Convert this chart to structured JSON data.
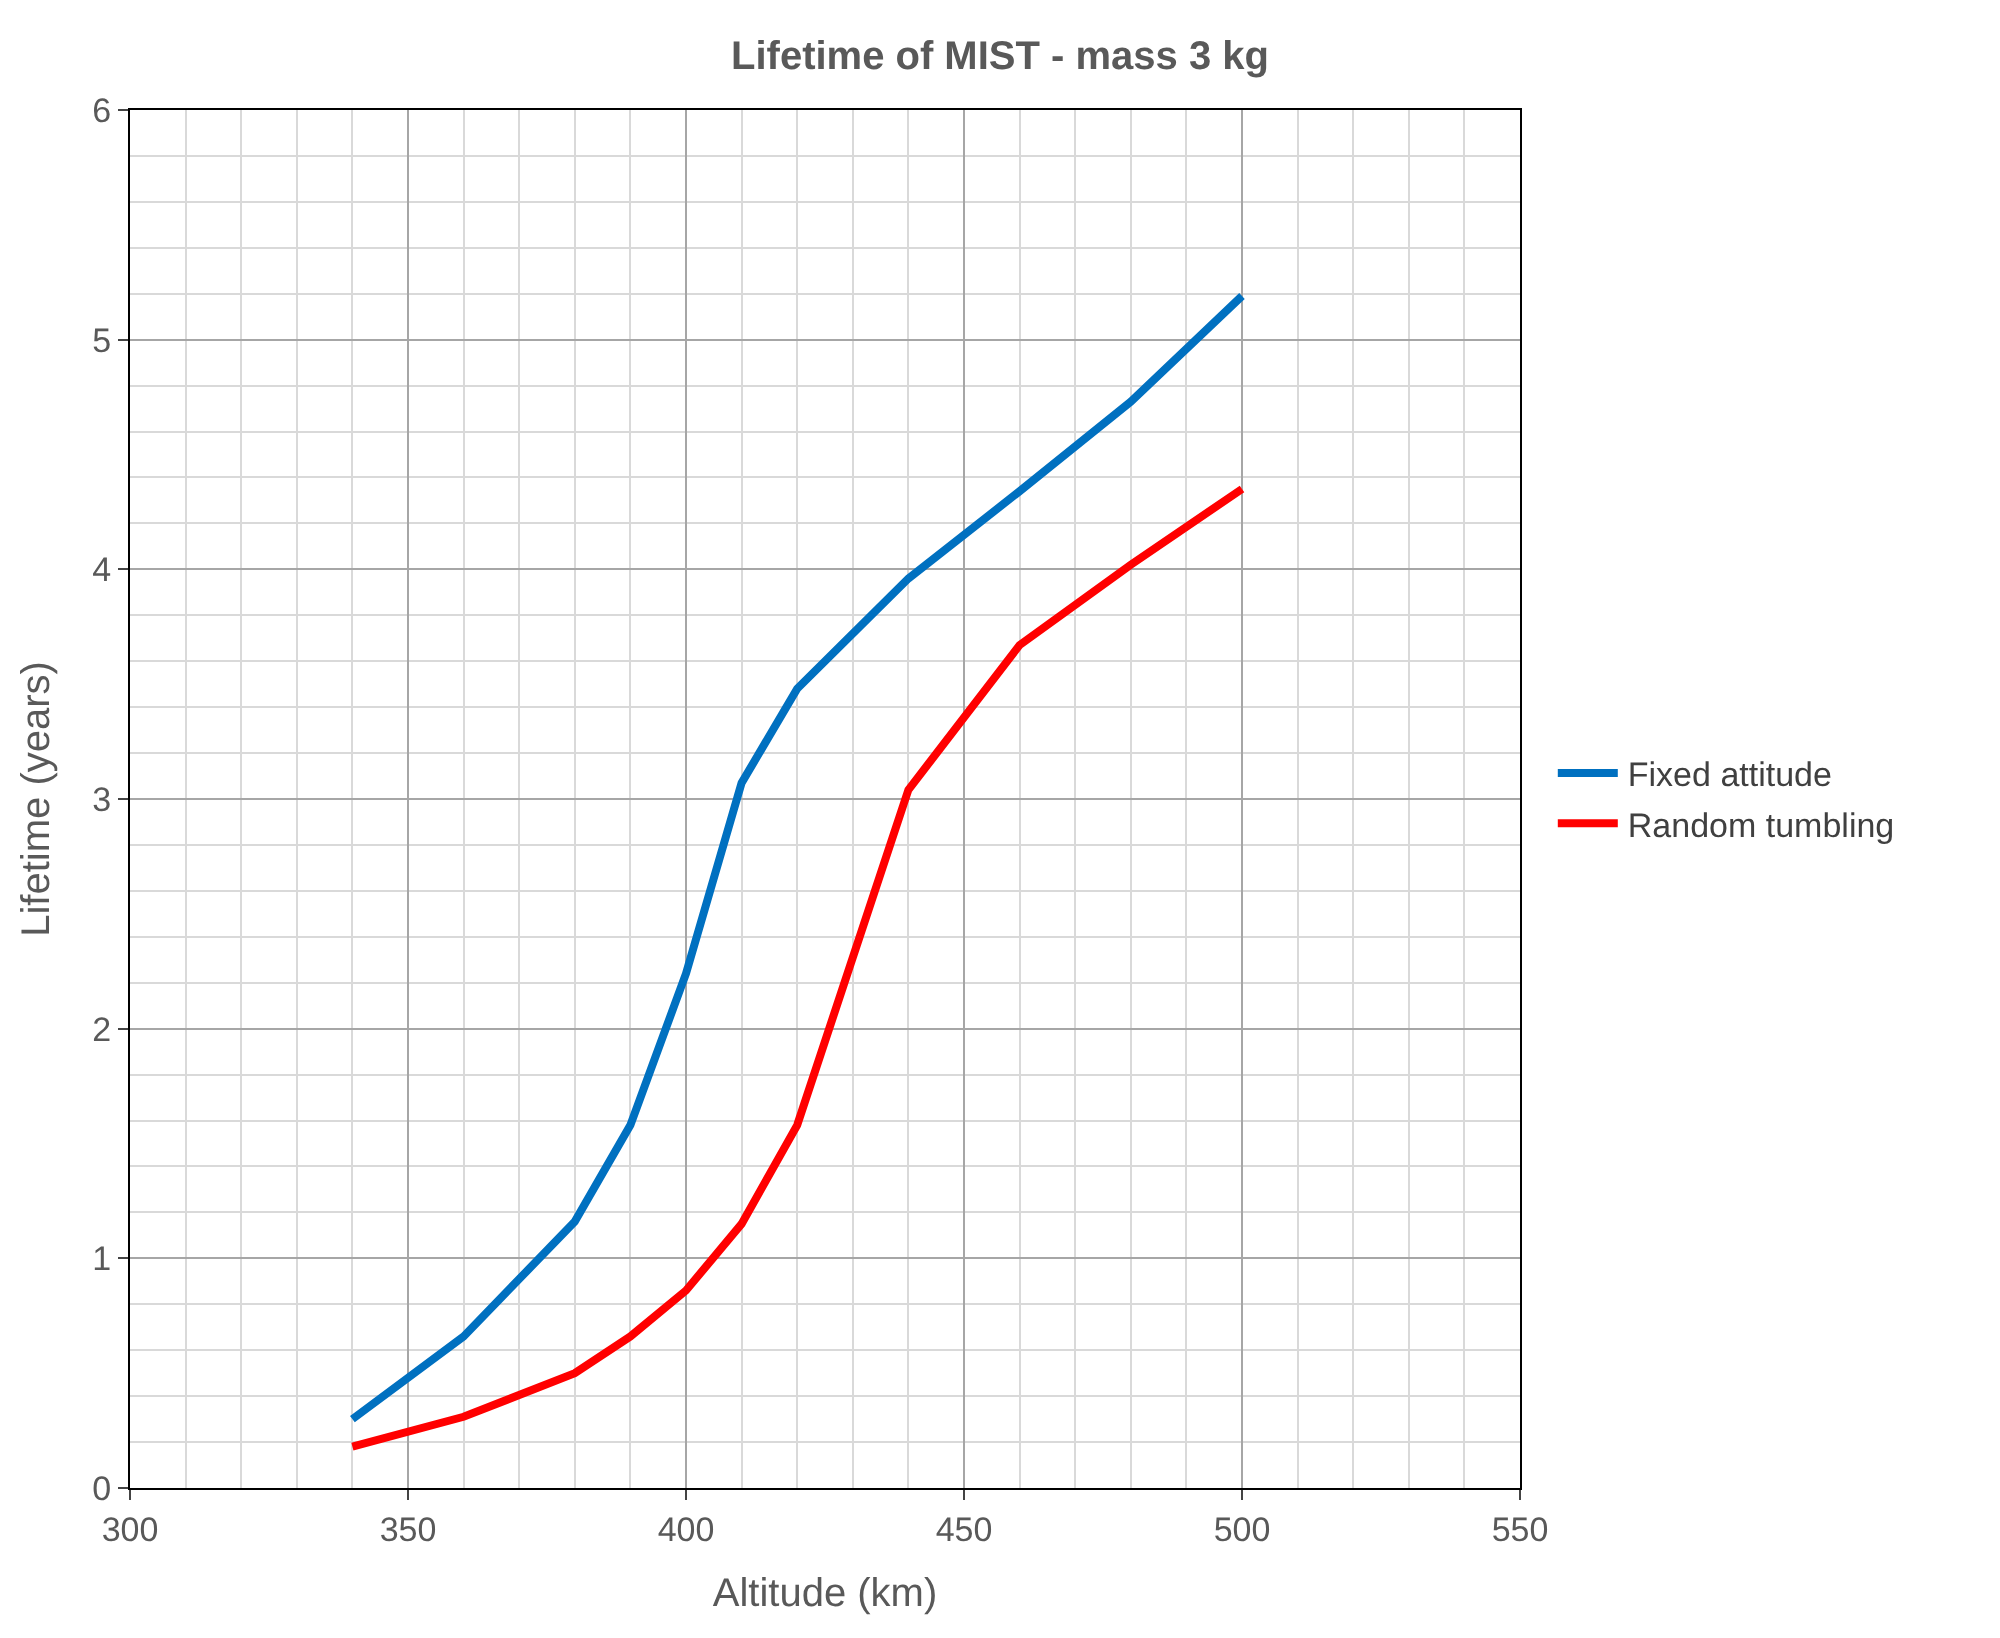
{
  "chart_data": {
    "type": "line",
    "title": "Lifetime of MIST - mass 3 kg",
    "xlabel": "Altitude (km)",
    "ylabel": "Lifetime (years)",
    "x": [
      340,
      360,
      380,
      390,
      400,
      410,
      420,
      440,
      460,
      480,
      500
    ],
    "series": [
      {
        "name": "Fixed attitude",
        "color": "#0070c0",
        "values": [
          0.3,
          0.66,
          1.16,
          1.58,
          2.24,
          3.07,
          3.48,
          3.96,
          4.34,
          4.73,
          5.19
        ]
      },
      {
        "name": "Random tumbling",
        "color": "#ff0000",
        "values": [
          0.18,
          0.31,
          0.5,
          0.66,
          0.86,
          1.15,
          1.58,
          3.04,
          3.67,
          4.02,
          4.35
        ]
      }
    ],
    "xlim": [
      300,
      550
    ],
    "xticks": [
      300,
      350,
      400,
      450,
      500,
      550
    ],
    "ylim": [
      0,
      6
    ],
    "yticks": [
      0,
      1,
      2,
      3,
      4,
      5,
      6
    ],
    "grid": true,
    "legend": "right",
    "marker": "none",
    "line_style": "solid"
  }
}
